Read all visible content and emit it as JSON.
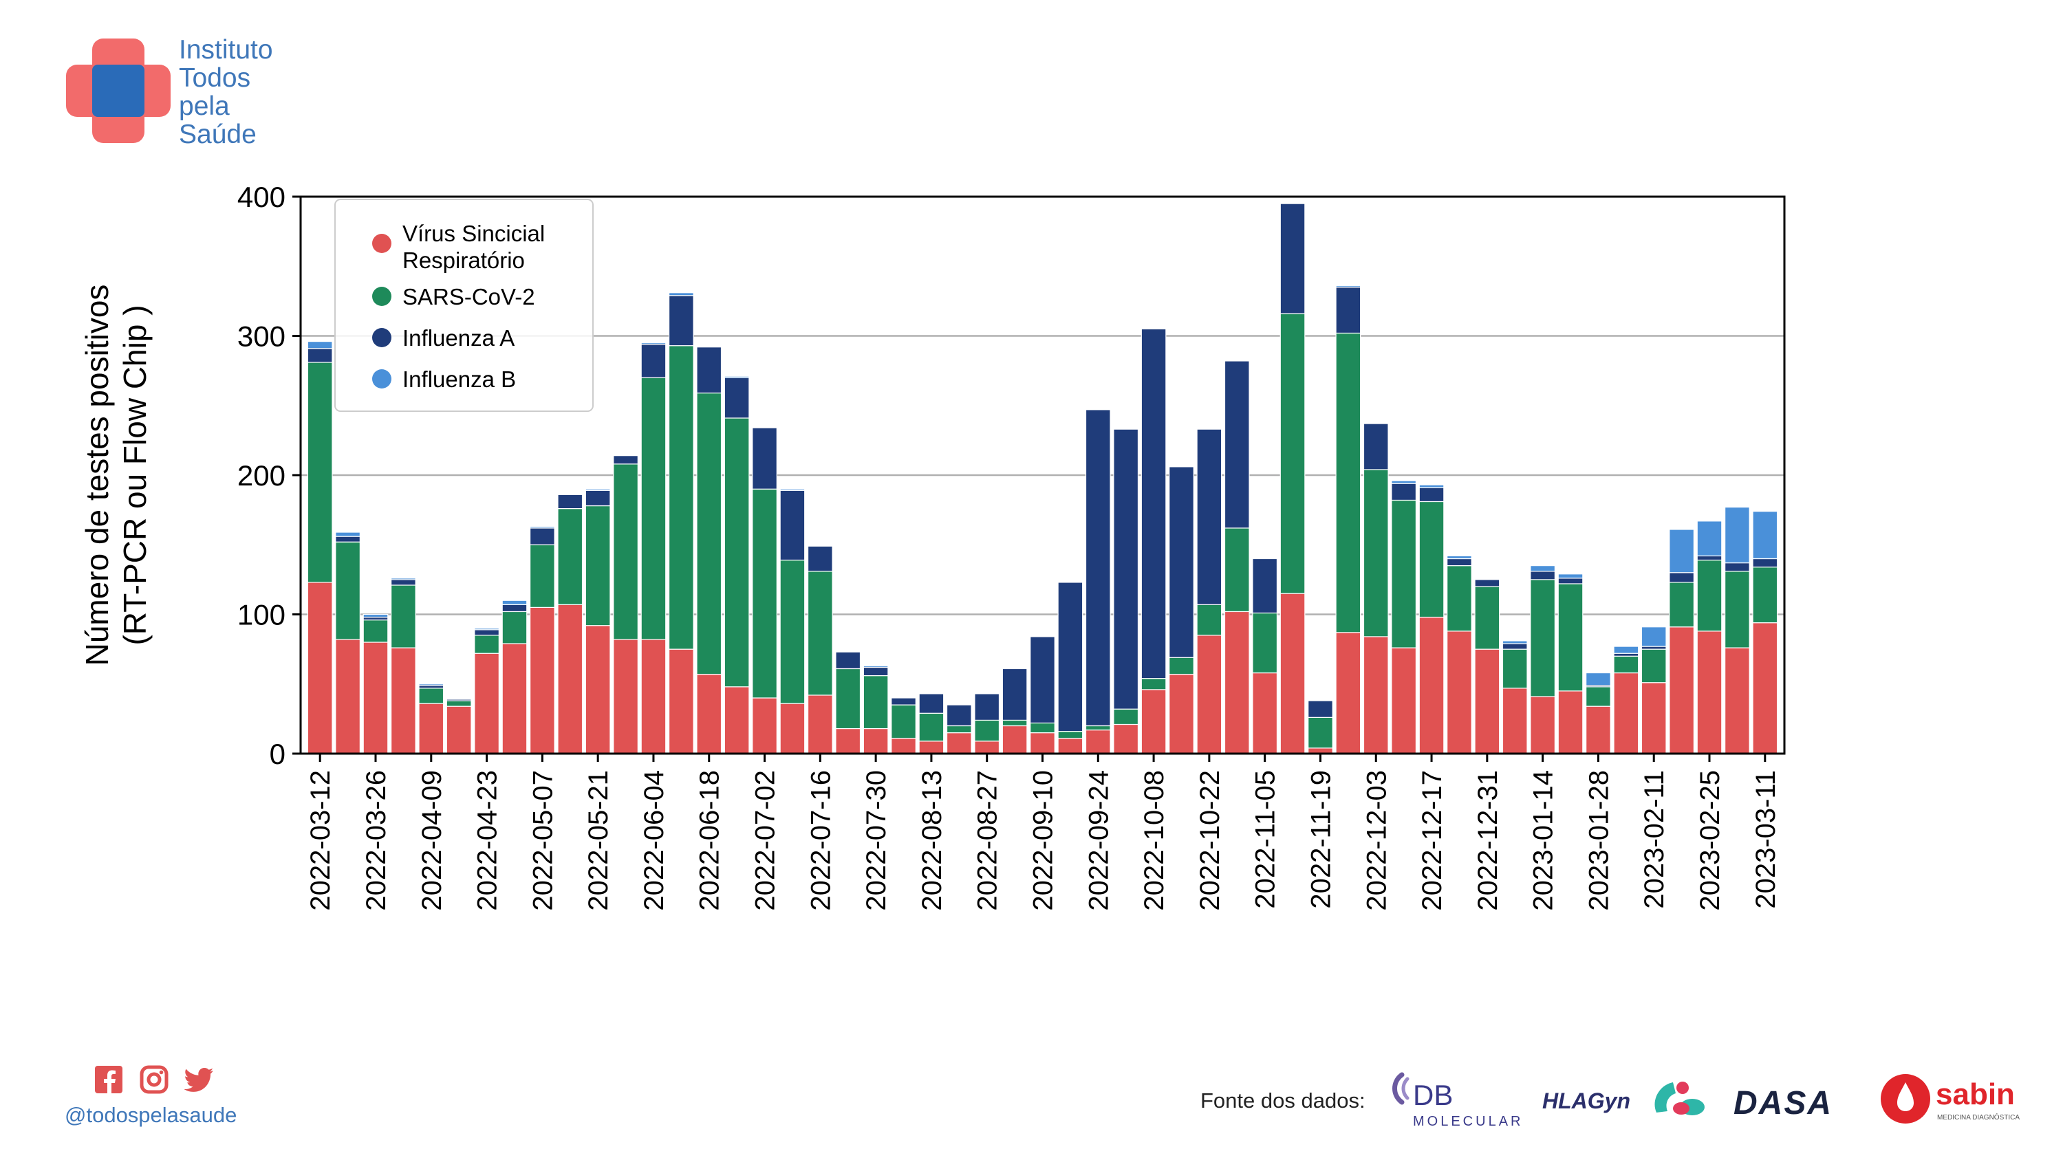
{
  "brand": {
    "name_lines": [
      "Instituto",
      "Todos",
      "pela",
      "Saúde"
    ],
    "colors": {
      "primary": "#3f77b9",
      "accent": "#f26b6b",
      "center": "#2a6bb8"
    }
  },
  "footer": {
    "social_icons": [
      "facebook-icon",
      "instagram-icon",
      "twitter-icon"
    ],
    "handle": "@todospelasaude",
    "source_label": "Fonte dos dados:",
    "sponsors": {
      "db_main": "DB",
      "db_sub": "MOLECULAR",
      "hlagyn": "HLAGyn",
      "dasa": "DASA",
      "sabin": "sabin",
      "sabin_sub": "MEDICINA DIAGNÓSTICA"
    }
  },
  "chart_data": {
    "type": "bar",
    "stacked": true,
    "ylabel": "Número de testes positivos (RT-PCR ou Flow Chip )",
    "ylabel_lines": [
      "Número de testes positivos",
      "(RT-PCR ou Flow Chip )"
    ],
    "xlabel": "",
    "ylim": [
      0,
      400
    ],
    "yticks": [
      0,
      100,
      200,
      300,
      400
    ],
    "grid": "horizontal",
    "legend_position": "top-left",
    "legend_entries": [
      {
        "lines": [
          "Vírus Sincicial",
          "Respiratório"
        ],
        "series": 0
      },
      {
        "lines": [
          "SARS-CoV-2"
        ],
        "series": 1
      },
      {
        "lines": [
          "Influenza A"
        ],
        "series": 2
      },
      {
        "lines": [
          "Influenza B"
        ],
        "series": 3
      }
    ],
    "tick_labels": [
      "2022-03-12",
      "2022-03-26",
      "2022-04-09",
      "2022-04-23",
      "2022-05-07",
      "2022-05-21",
      "2022-06-04",
      "2022-06-18",
      "2022-07-02",
      "2022-07-16",
      "2022-07-30",
      "2022-08-13",
      "2022-08-27",
      "2022-09-10",
      "2022-09-24",
      "2022-10-08",
      "2022-10-22",
      "2022-11-05",
      "2022-11-19",
      "2022-12-03",
      "2022-12-17",
      "2022-12-31",
      "2023-01-14",
      "2023-01-28",
      "2023-02-11",
      "2023-02-25",
      "2023-03-11"
    ],
    "categories": [
      "2022-03-12",
      "2022-03-19",
      "2022-03-26",
      "2022-04-02",
      "2022-04-09",
      "2022-04-16",
      "2022-04-23",
      "2022-04-30",
      "2022-05-07",
      "2022-05-14",
      "2022-05-21",
      "2022-05-28",
      "2022-06-04",
      "2022-06-11",
      "2022-06-18",
      "2022-06-25",
      "2022-07-02",
      "2022-07-09",
      "2022-07-16",
      "2022-07-23",
      "2022-07-30",
      "2022-08-06",
      "2022-08-13",
      "2022-08-20",
      "2022-08-27",
      "2022-09-03",
      "2022-09-10",
      "2022-09-17",
      "2022-09-24",
      "2022-10-01",
      "2022-10-08",
      "2022-10-15",
      "2022-10-22",
      "2022-10-29",
      "2022-11-05",
      "2022-11-12",
      "2022-11-19",
      "2022-11-26",
      "2022-12-03",
      "2022-12-10",
      "2022-12-17",
      "2022-12-24",
      "2022-12-31",
      "2023-01-07",
      "2023-01-14",
      "2023-01-21",
      "2023-01-28",
      "2023-02-04",
      "2023-02-11",
      "2023-02-18",
      "2023-02-25",
      "2023-03-04",
      "2023-03-11"
    ],
    "series": [
      {
        "name": "Vírus Sincicial Respiratório",
        "color": "#e05252",
        "values": [
          123,
          82,
          80,
          76,
          36,
          34,
          72,
          79,
          105,
          107,
          92,
          82,
          82,
          75,
          57,
          48,
          40,
          36,
          42,
          18,
          18,
          11,
          9,
          15,
          9,
          20,
          15,
          11,
          17,
          21,
          46,
          57,
          85,
          102,
          58,
          115,
          4,
          87,
          84,
          76,
          98,
          88,
          75,
          47,
          41,
          45,
          34,
          58,
          51,
          91,
          88,
          76,
          94
        ]
      },
      {
        "name": "SARS-CoV-2",
        "color": "#1e8a5a",
        "values": [
          158,
          70,
          16,
          45,
          11,
          4,
          13,
          23,
          45,
          69,
          86,
          126,
          188,
          218,
          202,
          193,
          150,
          103,
          89,
          43,
          38,
          24,
          20,
          5,
          15,
          4,
          7,
          5,
          3,
          11,
          8,
          12,
          22,
          60,
          43,
          201,
          22,
          215,
          120,
          106,
          83,
          47,
          45,
          28,
          84,
          77,
          14,
          12,
          24,
          32,
          51,
          55,
          40
        ]
      },
      {
        "name": "Influenza A",
        "color": "#1f3c7a",
        "values": [
          10,
          4,
          2,
          4,
          2,
          1,
          4,
          5,
          12,
          10,
          11,
          6,
          24,
          36,
          33,
          29,
          44,
          50,
          18,
          12,
          6,
          5,
          14,
          15,
          19,
          37,
          62,
          107,
          227,
          201,
          251,
          137,
          126,
          120,
          39,
          79,
          12,
          33,
          33,
          12,
          10,
          5,
          5,
          4,
          6,
          4,
          1,
          2,
          2,
          7,
          3,
          6,
          6
        ]
      },
      {
        "name": "Influenza B",
        "color": "#4a90d9",
        "values": [
          5,
          3,
          2,
          1,
          1,
          0,
          1,
          3,
          1,
          0,
          1,
          0,
          1,
          2,
          0,
          1,
          0,
          1,
          0,
          0,
          1,
          0,
          0,
          0,
          0,
          0,
          0,
          0,
          0,
          0,
          0,
          0,
          0,
          0,
          0,
          0,
          0,
          1,
          0,
          2,
          2,
          2,
          0,
          2,
          4,
          3,
          9,
          5,
          14,
          31,
          25,
          40,
          34
        ]
      }
    ]
  }
}
